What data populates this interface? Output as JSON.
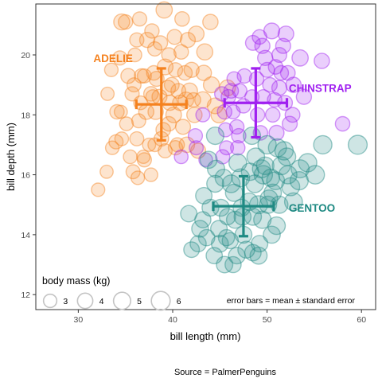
{
  "chart_data": {
    "type": "scatter",
    "xlabel": "bill length (mm)",
    "ylabel": "bill depth (mm)",
    "xlim": [
      25.5,
      61.5
    ],
    "ylim": [
      11.5,
      21.7
    ],
    "x_ticks": [
      30,
      40,
      50,
      60
    ],
    "y_ticks": [
      12,
      14,
      16,
      18,
      20
    ],
    "grid": false,
    "size_legend": {
      "title": "body mass (kg)",
      "placement": "bottom-left",
      "items": [
        {
          "label": "3",
          "value": 3
        },
        {
          "label": "4",
          "value": 4
        },
        {
          "label": "5",
          "value": 5
        },
        {
          "label": "6",
          "value": 6
        }
      ]
    },
    "annotation": "error bars = mean ± standard error",
    "caption": "Source = PalmerPenguins",
    "series": [
      {
        "name": "ADELIE",
        "color": "#f5821f",
        "error_bar": {
          "x_mean": 38.8,
          "y_mean": 18.35,
          "x_err": 2.65,
          "y_err": 1.2
        },
        "points": [
          {
            "x": 39.1,
            "y": 21.5,
            "m": 4.5
          },
          {
            "x": 35.0,
            "y": 21.1,
            "m": 3.5
          },
          {
            "x": 36.5,
            "y": 21.2,
            "m": 3.4
          },
          {
            "x": 41.0,
            "y": 21.2,
            "m": 3.6
          },
          {
            "x": 44.0,
            "y": 21.1,
            "m": 4.0
          },
          {
            "x": 34.6,
            "y": 21.1,
            "m": 4.3
          },
          {
            "x": 37.8,
            "y": 20.8,
            "m": 3.5
          },
          {
            "x": 40.2,
            "y": 20.6,
            "m": 3.7
          },
          {
            "x": 36.2,
            "y": 20.5,
            "m": 3.4
          },
          {
            "x": 38.7,
            "y": 20.4,
            "m": 3.5
          },
          {
            "x": 41.6,
            "y": 20.5,
            "m": 3.8
          },
          {
            "x": 42.5,
            "y": 20.7,
            "m": 4.1
          },
          {
            "x": 37.3,
            "y": 20.5,
            "m": 3.9
          },
          {
            "x": 38.1,
            "y": 20.2,
            "m": 3.4
          },
          {
            "x": 39.6,
            "y": 20.0,
            "m": 3.5
          },
          {
            "x": 40.9,
            "y": 20.1,
            "m": 3.6
          },
          {
            "x": 36.0,
            "y": 20.0,
            "m": 3.2
          },
          {
            "x": 34.4,
            "y": 19.9,
            "m": 3.4
          },
          {
            "x": 43.4,
            "y": 20.1,
            "m": 4.4
          },
          {
            "x": 33.5,
            "y": 19.5,
            "m": 3.1
          },
          {
            "x": 35.3,
            "y": 19.3,
            "m": 3.7
          },
          {
            "x": 37.0,
            "y": 19.3,
            "m": 3.3
          },
          {
            "x": 38.3,
            "y": 19.2,
            "m": 3.8
          },
          {
            "x": 39.2,
            "y": 19.6,
            "m": 4.2
          },
          {
            "x": 40.3,
            "y": 19.5,
            "m": 3.5
          },
          {
            "x": 41.3,
            "y": 19.4,
            "m": 3.6
          },
          {
            "x": 42.0,
            "y": 19.5,
            "m": 3.9
          },
          {
            "x": 43.3,
            "y": 19.4,
            "m": 4.0
          },
          {
            "x": 44.1,
            "y": 19.0,
            "m": 4.3
          },
          {
            "x": 45.8,
            "y": 18.9,
            "m": 4.3
          },
          {
            "x": 36.7,
            "y": 19.3,
            "m": 3.45
          },
          {
            "x": 34.1,
            "y": 18.1,
            "m": 3.5
          },
          {
            "x": 35.7,
            "y": 18.7,
            "m": 3.4
          },
          {
            "x": 37.7,
            "y": 18.7,
            "m": 3.6
          },
          {
            "x": 38.6,
            "y": 18.6,
            "m": 3.8
          },
          {
            "x": 39.5,
            "y": 18.9,
            "m": 3.9
          },
          {
            "x": 40.6,
            "y": 18.8,
            "m": 3.7
          },
          {
            "x": 41.4,
            "y": 18.5,
            "m": 4.1
          },
          {
            "x": 42.2,
            "y": 18.5,
            "m": 3.5
          },
          {
            "x": 36.6,
            "y": 18.4,
            "m": 3.2
          },
          {
            "x": 35.9,
            "y": 19.0,
            "m": 3.3
          },
          {
            "x": 37.9,
            "y": 18.6,
            "m": 3.4
          },
          {
            "x": 39.7,
            "y": 18.4,
            "m": 3.9
          },
          {
            "x": 40.8,
            "y": 18.4,
            "m": 4.0
          },
          {
            "x": 43.2,
            "y": 18.5,
            "m": 4.5
          },
          {
            "x": 33.1,
            "y": 18.7,
            "m": 3.0
          },
          {
            "x": 34.0,
            "y": 17.1,
            "m": 3.4
          },
          {
            "x": 35.1,
            "y": 17.7,
            "m": 3.2
          },
          {
            "x": 36.4,
            "y": 17.8,
            "m": 3.3
          },
          {
            "x": 37.2,
            "y": 18.1,
            "m": 3.9
          },
          {
            "x": 38.2,
            "y": 18.1,
            "m": 3.95
          },
          {
            "x": 39.0,
            "y": 17.5,
            "m": 3.55
          },
          {
            "x": 40.1,
            "y": 18.0,
            "m": 4.15
          },
          {
            "x": 41.1,
            "y": 17.6,
            "m": 3.8
          },
          {
            "x": 42.3,
            "y": 18.0,
            "m": 4.0
          },
          {
            "x": 44.5,
            "y": 18.3,
            "m": 4.2
          },
          {
            "x": 34.5,
            "y": 18.1,
            "m": 2.9
          },
          {
            "x": 36.2,
            "y": 17.2,
            "m": 3.3
          },
          {
            "x": 37.5,
            "y": 17.0,
            "m": 3.0
          },
          {
            "x": 38.8,
            "y": 17.2,
            "m": 3.6
          },
          {
            "x": 39.6,
            "y": 17.7,
            "m": 3.55
          },
          {
            "x": 40.5,
            "y": 17.0,
            "m": 3.35
          },
          {
            "x": 41.5,
            "y": 17.0,
            "m": 4.05
          },
          {
            "x": 35.5,
            "y": 16.6,
            "m": 3.2
          },
          {
            "x": 36.9,
            "y": 16.6,
            "m": 3.0
          },
          {
            "x": 37.7,
            "y": 16.0,
            "m": 3.1
          },
          {
            "x": 38.1,
            "y": 17.0,
            "m": 3.2
          },
          {
            "x": 39.2,
            "y": 16.8,
            "m": 3.3
          },
          {
            "x": 40.3,
            "y": 16.9,
            "m": 3.5
          },
          {
            "x": 42.7,
            "y": 16.8,
            "m": 3.8
          },
          {
            "x": 34.6,
            "y": 17.2,
            "m": 3.2
          },
          {
            "x": 33.6,
            "y": 16.9,
            "m": 3.1
          },
          {
            "x": 35.8,
            "y": 16.1,
            "m": 3.3
          },
          {
            "x": 36.3,
            "y": 15.9,
            "m": 3.1
          },
          {
            "x": 32.1,
            "y": 15.5,
            "m": 3.05
          },
          {
            "x": 33.0,
            "y": 16.1,
            "m": 2.9
          },
          {
            "x": 37.0,
            "y": 16.5,
            "m": 3.4
          },
          {
            "x": 44.9,
            "y": 18.0,
            "m": 4.3
          },
          {
            "x": 38.0,
            "y": 19.4,
            "m": 3.6
          },
          {
            "x": 39.9,
            "y": 19.0,
            "m": 3.7
          },
          {
            "x": 41.8,
            "y": 18.8,
            "m": 4.2
          }
        ]
      },
      {
        "name": "CHINSTRAP",
        "color": "#a020f0",
        "error_bar": {
          "x_mean": 48.8,
          "y_mean": 18.4,
          "x_err": 3.3,
          "y_err": 1.15
        },
        "points": [
          {
            "x": 50.5,
            "y": 20.8,
            "m": 4.2
          },
          {
            "x": 51.7,
            "y": 20.3,
            "m": 3.8
          },
          {
            "x": 49.5,
            "y": 20.3,
            "m": 3.9
          },
          {
            "x": 48.5,
            "y": 20.4,
            "m": 3.7
          },
          {
            "x": 49.2,
            "y": 20.6,
            "m": 3.6
          },
          {
            "x": 52.0,
            "y": 20.7,
            "m": 4.1
          },
          {
            "x": 53.5,
            "y": 19.9,
            "m": 4.5
          },
          {
            "x": 55.8,
            "y": 19.8,
            "m": 4.0
          },
          {
            "x": 51.3,
            "y": 20.0,
            "m": 3.7
          },
          {
            "x": 50.9,
            "y": 19.6,
            "m": 3.6
          },
          {
            "x": 49.8,
            "y": 19.9,
            "m": 3.85
          },
          {
            "x": 51.5,
            "y": 19.4,
            "m": 3.6
          },
          {
            "x": 52.2,
            "y": 19.4,
            "m": 3.65
          },
          {
            "x": 50.0,
            "y": 19.5,
            "m": 3.7
          },
          {
            "x": 47.6,
            "y": 19.3,
            "m": 3.5
          },
          {
            "x": 48.9,
            "y": 19.2,
            "m": 3.5
          },
          {
            "x": 46.5,
            "y": 19.2,
            "m": 3.4
          },
          {
            "x": 52.8,
            "y": 19.0,
            "m": 4.0
          },
          {
            "x": 51.3,
            "y": 18.9,
            "m": 3.8
          },
          {
            "x": 50.3,
            "y": 19.0,
            "m": 3.6
          },
          {
            "x": 49.6,
            "y": 18.6,
            "m": 3.5
          },
          {
            "x": 48.4,
            "y": 18.6,
            "m": 3.4
          },
          {
            "x": 46.2,
            "y": 18.8,
            "m": 3.6
          },
          {
            "x": 45.9,
            "y": 18.6,
            "m": 3.55
          },
          {
            "x": 45.2,
            "y": 18.7,
            "m": 3.45
          },
          {
            "x": 47.5,
            "y": 18.3,
            "m": 3.5
          },
          {
            "x": 50.8,
            "y": 18.5,
            "m": 3.6
          },
          {
            "x": 51.9,
            "y": 18.4,
            "m": 3.7
          },
          {
            "x": 53.9,
            "y": 18.6,
            "m": 3.9
          },
          {
            "x": 45.5,
            "y": 18.1,
            "m": 3.6
          },
          {
            "x": 46.4,
            "y": 18.1,
            "m": 3.3
          },
          {
            "x": 49.0,
            "y": 18.0,
            "m": 3.5
          },
          {
            "x": 50.6,
            "y": 18.0,
            "m": 3.6
          },
          {
            "x": 52.7,
            "y": 18.0,
            "m": 3.7
          },
          {
            "x": 43.2,
            "y": 18.0,
            "m": 3.3
          },
          {
            "x": 42.4,
            "y": 17.3,
            "m": 3.4
          },
          {
            "x": 45.6,
            "y": 17.5,
            "m": 3.3
          },
          {
            "x": 46.8,
            "y": 17.6,
            "m": 3.45
          },
          {
            "x": 47.0,
            "y": 17.3,
            "m": 3.45
          },
          {
            "x": 49.3,
            "y": 17.4,
            "m": 3.6
          },
          {
            "x": 51.0,
            "y": 17.4,
            "m": 3.8
          },
          {
            "x": 46.9,
            "y": 16.9,
            "m": 3.5
          },
          {
            "x": 45.7,
            "y": 16.9,
            "m": 3.3
          },
          {
            "x": 42.5,
            "y": 16.9,
            "m": 3.3
          },
          {
            "x": 43.5,
            "y": 16.5,
            "m": 3.2
          },
          {
            "x": 45.3,
            "y": 16.6,
            "m": 3.4
          },
          {
            "x": 40.9,
            "y": 16.6,
            "m": 3.2
          },
          {
            "x": 58.0,
            "y": 17.7,
            "m": 3.6
          },
          {
            "x": 47.1,
            "y": 18.8,
            "m": 3.6
          },
          {
            "x": 52.4,
            "y": 17.7,
            "m": 3.8
          }
        ]
      },
      {
        "name": "GENTOO",
        "color": "#1f8a83",
        "error_bar": {
          "x_mean": 47.5,
          "y_mean": 14.95,
          "x_err": 3.2,
          "y_err": 1.0
        },
        "points": [
          {
            "x": 44.5,
            "y": 17.3,
            "m": 5.1
          },
          {
            "x": 48.4,
            "y": 17.3,
            "m": 5.0
          },
          {
            "x": 50.0,
            "y": 17.0,
            "m": 5.7
          },
          {
            "x": 51.1,
            "y": 16.9,
            "m": 5.5
          },
          {
            "x": 55.9,
            "y": 17.0,
            "m": 5.7
          },
          {
            "x": 59.6,
            "y": 17.0,
            "m": 6.05
          },
          {
            "x": 54.3,
            "y": 16.4,
            "m": 5.65
          },
          {
            "x": 49.8,
            "y": 16.3,
            "m": 5.2
          },
          {
            "x": 48.2,
            "y": 16.1,
            "m": 5.1
          },
          {
            "x": 50.4,
            "y": 15.9,
            "m": 5.25
          },
          {
            "x": 51.5,
            "y": 16.3,
            "m": 5.5
          },
          {
            "x": 52.1,
            "y": 16.6,
            "m": 5.3
          },
          {
            "x": 49.6,
            "y": 16.0,
            "m": 5.7
          },
          {
            "x": 50.9,
            "y": 15.8,
            "m": 5.4
          },
          {
            "x": 52.5,
            "y": 15.6,
            "m": 5.45
          },
          {
            "x": 53.4,
            "y": 15.8,
            "m": 5.6
          },
          {
            "x": 55.1,
            "y": 16.0,
            "m": 5.8
          },
          {
            "x": 50.6,
            "y": 15.4,
            "m": 5.15
          },
          {
            "x": 48.7,
            "y": 15.7,
            "m": 5.35
          },
          {
            "x": 46.2,
            "y": 15.7,
            "m": 5.3
          },
          {
            "x": 45.4,
            "y": 15.9,
            "m": 4.9
          },
          {
            "x": 47.2,
            "y": 15.9,
            "m": 5.4
          },
          {
            "x": 44.5,
            "y": 15.7,
            "m": 4.85
          },
          {
            "x": 43.3,
            "y": 15.3,
            "m": 4.6
          },
          {
            "x": 46.5,
            "y": 15.4,
            "m": 5.0
          },
          {
            "x": 48.1,
            "y": 15.1,
            "m": 5.1
          },
          {
            "x": 49.1,
            "y": 15.0,
            "m": 5.5
          },
          {
            "x": 50.2,
            "y": 15.2,
            "m": 5.2
          },
          {
            "x": 51.3,
            "y": 15.0,
            "m": 5.0
          },
          {
            "x": 45.1,
            "y": 14.9,
            "m": 4.85
          },
          {
            "x": 47.3,
            "y": 14.9,
            "m": 4.9
          },
          {
            "x": 48.5,
            "y": 14.6,
            "m": 4.95
          },
          {
            "x": 49.5,
            "y": 14.5,
            "m": 5.1
          },
          {
            "x": 45.8,
            "y": 14.6,
            "m": 4.5
          },
          {
            "x": 46.6,
            "y": 14.5,
            "m": 4.9
          },
          {
            "x": 44.9,
            "y": 14.2,
            "m": 4.7
          },
          {
            "x": 42.9,
            "y": 14.2,
            "m": 4.75
          },
          {
            "x": 43.2,
            "y": 14.5,
            "m": 4.4
          },
          {
            "x": 41.7,
            "y": 14.7,
            "m": 4.6
          },
          {
            "x": 46.1,
            "y": 13.8,
            "m": 4.4
          },
          {
            "x": 47.5,
            "y": 14.0,
            "m": 4.8
          },
          {
            "x": 49.2,
            "y": 13.7,
            "m": 4.65
          },
          {
            "x": 50.5,
            "y": 14.0,
            "m": 4.9
          },
          {
            "x": 51.0,
            "y": 14.3,
            "m": 5.2
          },
          {
            "x": 45.0,
            "y": 13.7,
            "m": 4.8
          },
          {
            "x": 43.6,
            "y": 13.9,
            "m": 4.5
          },
          {
            "x": 44.4,
            "y": 13.3,
            "m": 4.5
          },
          {
            "x": 46.8,
            "y": 13.3,
            "m": 4.7
          },
          {
            "x": 47.8,
            "y": 13.5,
            "m": 4.85
          },
          {
            "x": 45.5,
            "y": 13.0,
            "m": 4.6
          },
          {
            "x": 46.4,
            "y": 13.0,
            "m": 4.4
          },
          {
            "x": 49.1,
            "y": 13.3,
            "m": 4.9
          },
          {
            "x": 42.0,
            "y": 13.5,
            "m": 4.15
          },
          {
            "x": 42.7,
            "y": 13.7,
            "m": 4.4
          },
          {
            "x": 47.4,
            "y": 14.6,
            "m": 4.8
          },
          {
            "x": 44.0,
            "y": 14.9,
            "m": 4.75
          },
          {
            "x": 52.8,
            "y": 15.1,
            "m": 5.4
          },
          {
            "x": 45.7,
            "y": 13.9,
            "m": 4.4
          },
          {
            "x": 48.5,
            "y": 13.4,
            "m": 4.6
          },
          {
            "x": 50.1,
            "y": 15.0,
            "m": 5.0
          },
          {
            "x": 46.9,
            "y": 16.4,
            "m": 5.3
          },
          {
            "x": 49.4,
            "y": 16.2,
            "m": 5.45
          },
          {
            "x": 44.6,
            "y": 16.2,
            "m": 5.0
          },
          {
            "x": 43.8,
            "y": 16.5,
            "m": 4.9
          },
          {
            "x": 52.2,
            "y": 16.0,
            "m": 5.6
          },
          {
            "x": 53.5,
            "y": 16.2,
            "m": 5.5
          },
          {
            "x": 48.8,
            "y": 16.6,
            "m": 5.35
          },
          {
            "x": 51.8,
            "y": 16.8,
            "m": 5.7
          }
        ]
      }
    ]
  }
}
